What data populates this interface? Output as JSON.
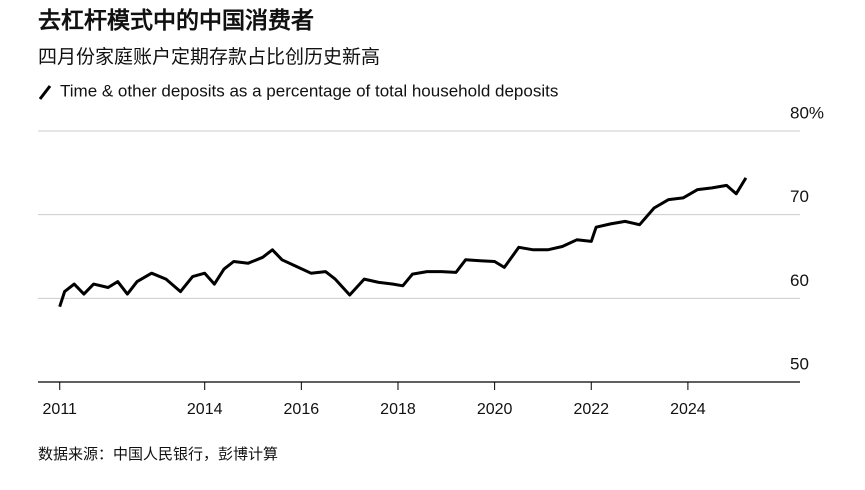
{
  "chart_data": {
    "type": "line",
    "title": "去杠杆模式中的中国消费者",
    "subtitle": "四月份家庭账户定期存款占比创历史新高",
    "source": "数据来源：中国人民银行，彭博计算",
    "x": [
      2011.0,
      2011.1,
      2011.3,
      2011.5,
      2011.7,
      2012.0,
      2012.2,
      2012.4,
      2012.6,
      2012.9,
      2013.2,
      2013.5,
      2013.75,
      2014.0,
      2014.2,
      2014.4,
      2014.6,
      2014.9,
      2015.2,
      2015.4,
      2015.6,
      2015.9,
      2016.2,
      2016.5,
      2016.7,
      2017.0,
      2017.3,
      2017.6,
      2017.9,
      2018.1,
      2018.3,
      2018.6,
      2018.9,
      2019.2,
      2019.4,
      2019.7,
      2020.0,
      2020.2,
      2020.5,
      2020.8,
      2021.1,
      2021.4,
      2021.7,
      2022.0,
      2022.1,
      2022.4,
      2022.7,
      2023.0,
      2023.3,
      2023.6,
      2023.9,
      2024.2,
      2024.5,
      2024.8,
      2025.0,
      2025.2
    ],
    "series": [
      {
        "name": "Time & other deposits as a percentage of total household deposits",
        "color": "#000000",
        "values": [
          59.0,
          60.8,
          61.7,
          60.5,
          61.7,
          61.3,
          62.0,
          60.5,
          62.0,
          63.0,
          62.3,
          60.8,
          62.6,
          63.0,
          61.7,
          63.5,
          64.4,
          64.2,
          64.9,
          65.8,
          64.6,
          63.8,
          63.0,
          63.2,
          62.3,
          60.4,
          62.3,
          61.9,
          61.7,
          61.5,
          62.9,
          63.2,
          63.2,
          63.1,
          64.6,
          64.5,
          64.4,
          63.7,
          66.1,
          65.8,
          65.8,
          66.2,
          67.0,
          66.8,
          68.5,
          68.9,
          69.2,
          68.8,
          70.8,
          71.8,
          72.0,
          73.0,
          73.2,
          73.5,
          72.5,
          74.4
        ]
      }
    ],
    "xlim": [
      2010.55,
      2026.32
    ],
    "xticks": [
      2011,
      2014,
      2016,
      2018,
      2020,
      2022,
      2024
    ],
    "ylim": [
      50,
      80
    ],
    "yticks": [
      50,
      60,
      70,
      {
        "value": 80,
        "label": "80%"
      }
    ],
    "grid": true
  }
}
